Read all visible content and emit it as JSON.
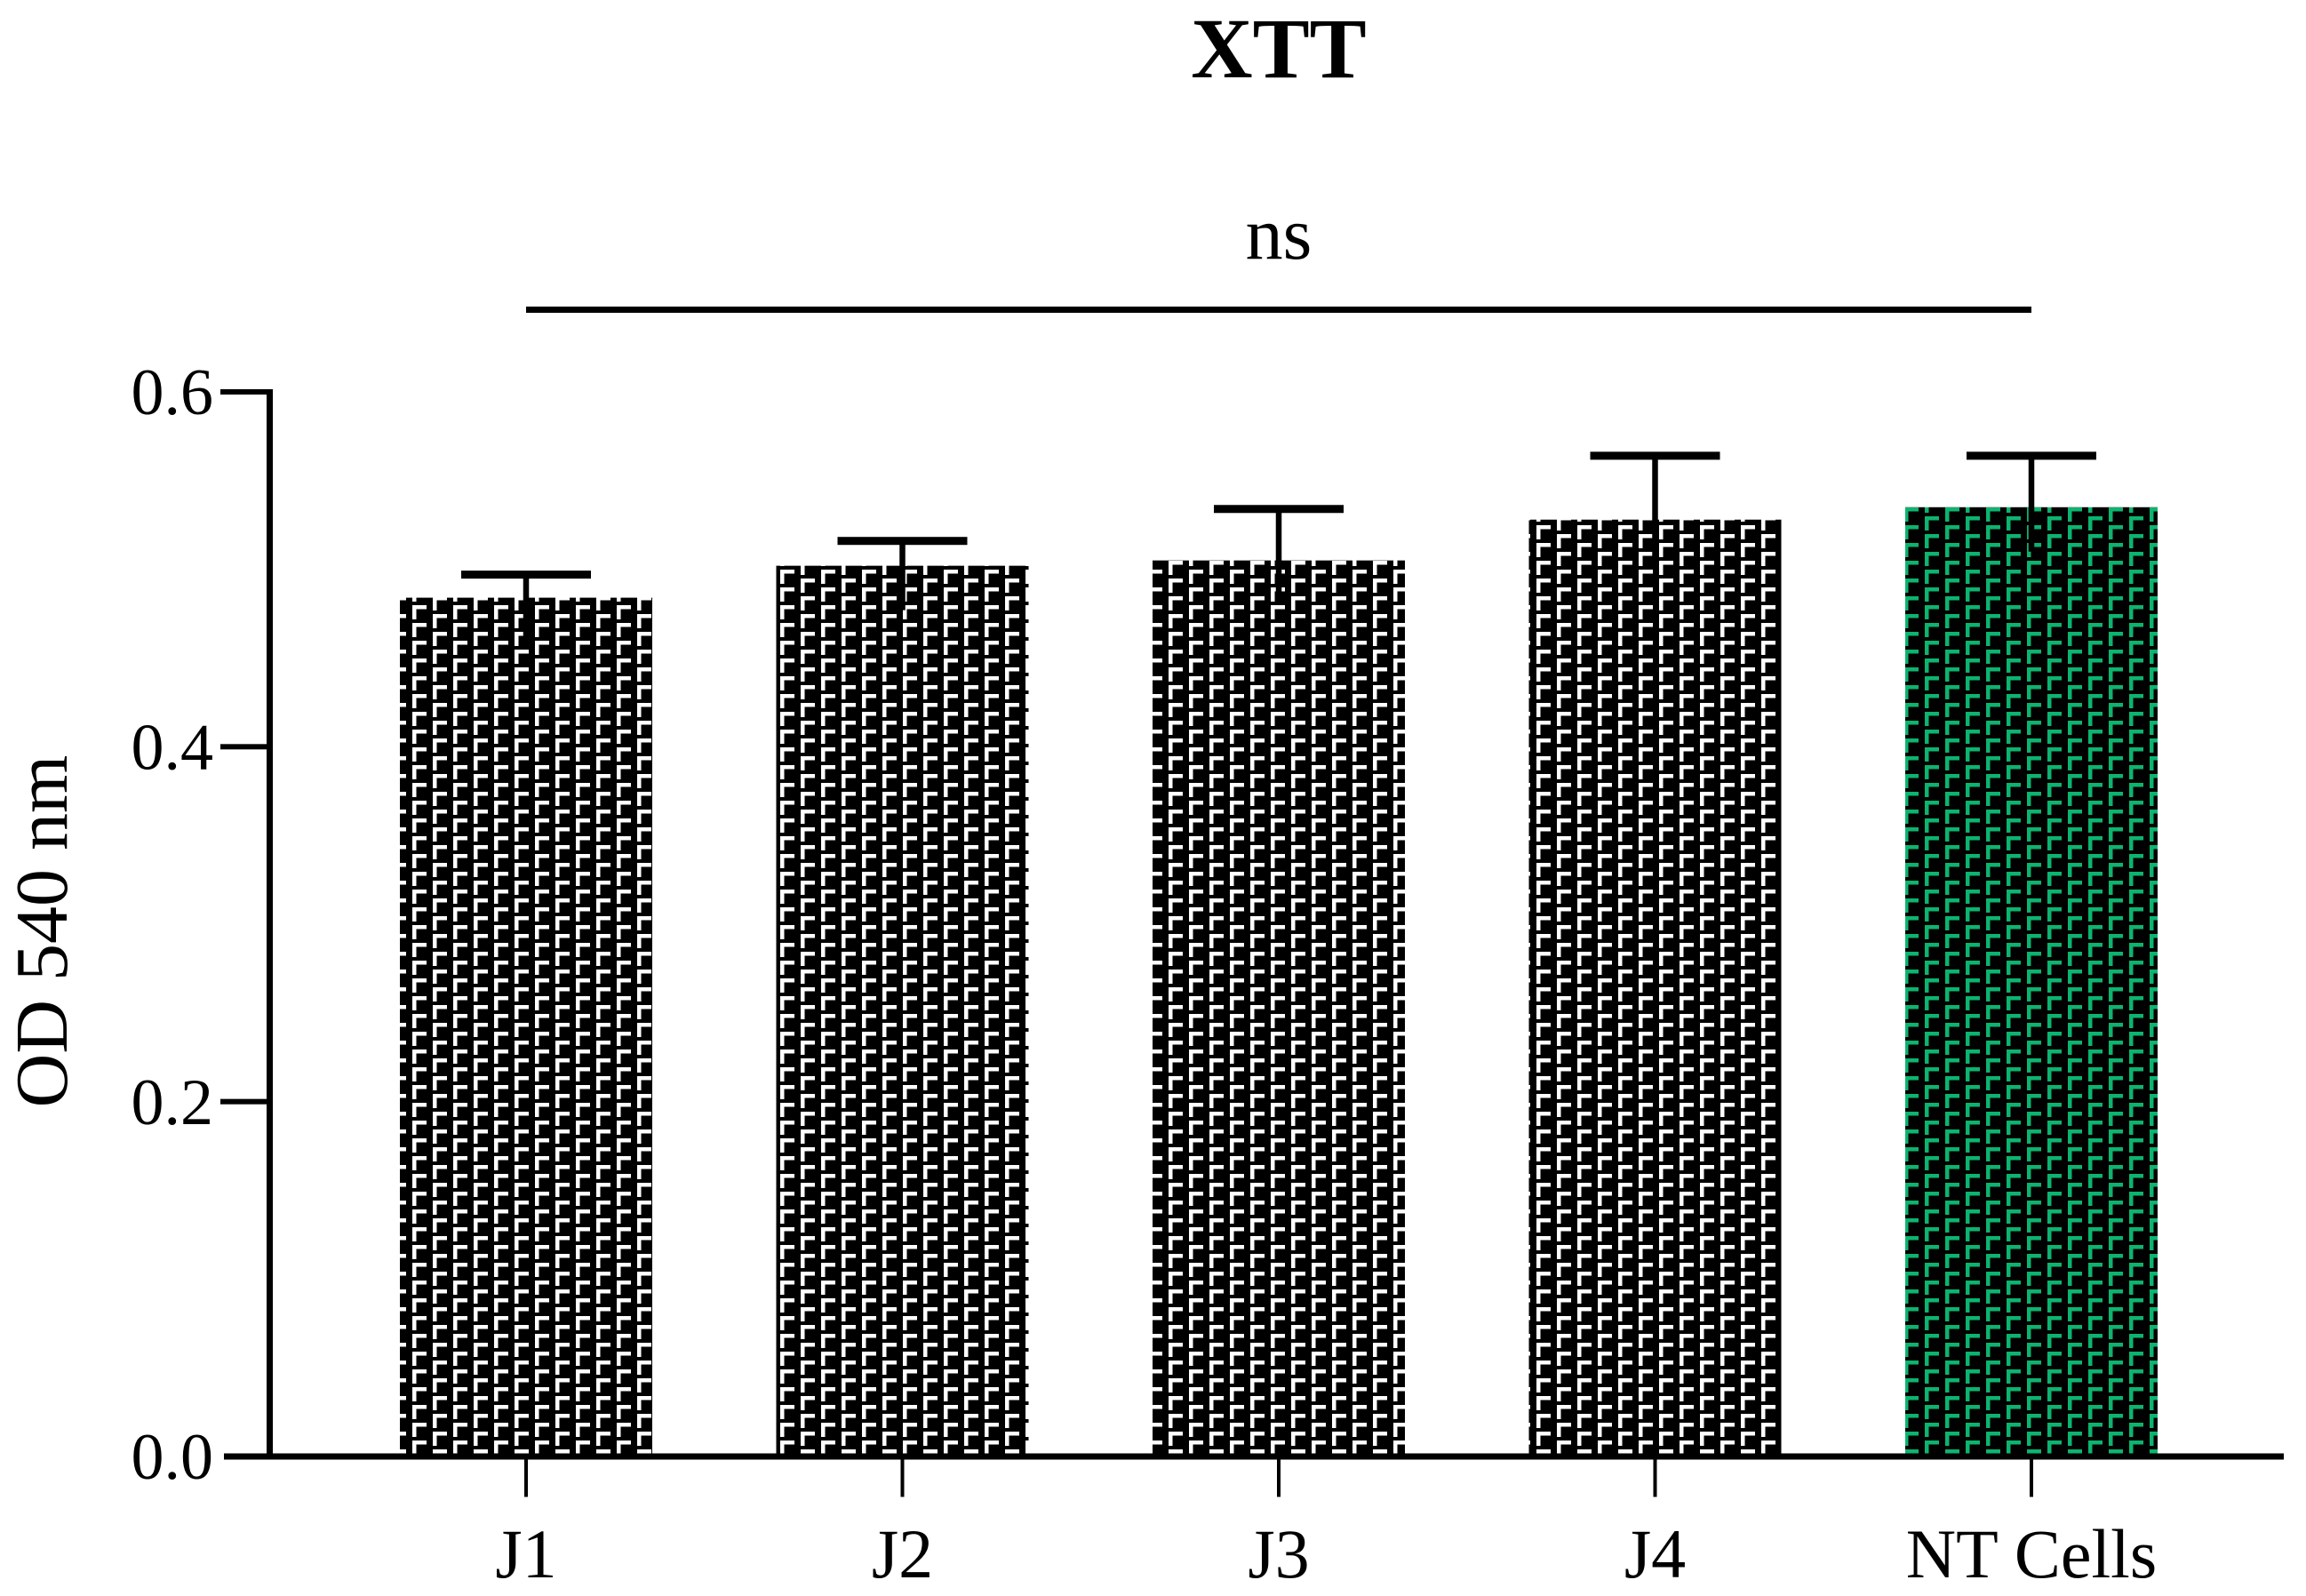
{
  "chart_data": {
    "type": "bar",
    "title": "XTT",
    "ylabel": "OD 540 nm",
    "xlabel": "",
    "categories": [
      "J1",
      "J2",
      "J3",
      "J4",
      "NT Cells"
    ],
    "values": [
      0.484,
      0.502,
      0.505,
      0.528,
      0.535
    ],
    "errors_upper": [
      0.013,
      0.014,
      0.029,
      0.036,
      0.029
    ],
    "error_bars": "upper only, capped",
    "ylim": [
      0.0,
      0.6
    ],
    "yticks": [
      0.0,
      0.2,
      0.4,
      0.6
    ],
    "ytick_labels": [
      "0.0",
      "0.2",
      "0.4",
      "0.6"
    ],
    "grid": false,
    "legend": "none",
    "annotation": {
      "text": "ns",
      "from_category": "J1",
      "to_category": "NT Cells",
      "style": "horizontal significance line below label"
    },
    "bar_style": {
      "fill": "#000000",
      "hatch": "corner-bracket",
      "hatch_color_default": "#FFFFFF",
      "hatch_color_by_category": {
        "NT Cells": "#0DB46F"
      }
    },
    "colors": {
      "axis": "#000000",
      "background": "#FFFFFF",
      "accent_green": "#0DB46F"
    }
  }
}
